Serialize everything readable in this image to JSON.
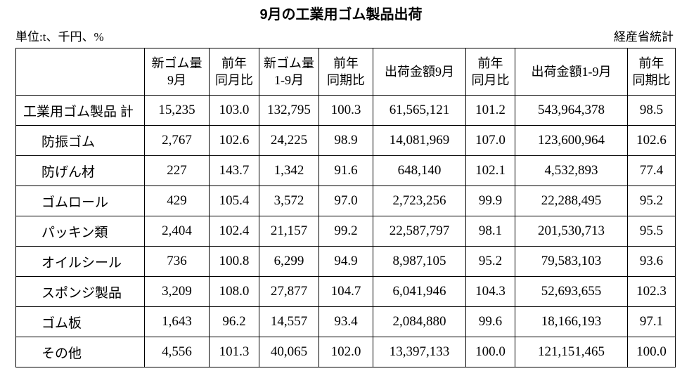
{
  "header": {
    "title": "9月の工業用ゴム製品出荷",
    "unit": "単位:t、千円、%",
    "source": "経産省統計"
  },
  "table": {
    "columns": [
      [
        "新ゴム量",
        "9月"
      ],
      [
        "前年",
        "同月比"
      ],
      [
        "新ゴム量",
        "1-9月"
      ],
      [
        "前年",
        "同期比"
      ],
      [
        "出荷金額9月"
      ],
      [
        "前年",
        "同月比"
      ],
      [
        "出荷金額1-9月"
      ],
      [
        "前年",
        "同期比"
      ]
    ],
    "rows": [
      [
        "工業用ゴム製品 計",
        "15,235",
        "103.0",
        "132,795",
        "100.3",
        "61,565,121",
        "101.2",
        "543,964,378",
        "98.5"
      ],
      [
        "防振ゴム",
        "2,767",
        "102.6",
        "24,225",
        "98.9",
        "14,081,969",
        "107.0",
        "123,600,964",
        "102.6"
      ],
      [
        "防げん材",
        "227",
        "143.7",
        "1,342",
        "91.6",
        "648,140",
        "102.1",
        "4,532,893",
        "77.4"
      ],
      [
        "ゴムロール",
        "429",
        "105.4",
        "3,572",
        "97.0",
        "2,723,256",
        "99.9",
        "22,288,495",
        "95.2"
      ],
      [
        "パッキン類",
        "2,404",
        "102.4",
        "21,157",
        "99.2",
        "22,587,797",
        "98.1",
        "201,530,713",
        "95.5"
      ],
      [
        "オイルシール",
        "736",
        "100.8",
        "6,299",
        "94.9",
        "8,987,105",
        "95.2",
        "79,583,103",
        "93.6"
      ],
      [
        "スポンジ製品",
        "3,209",
        "108.0",
        "27,877",
        "104.7",
        "6,041,946",
        "104.3",
        "52,693,655",
        "102.3"
      ],
      [
        "ゴム板",
        "1,643",
        "96.2",
        "14,557",
        "93.4",
        "2,084,880",
        "99.6",
        "18,166,193",
        "97.1"
      ],
      [
        "その他",
        "4,556",
        "101.3",
        "40,065",
        "102.0",
        "13,397,133",
        "100.0",
        "121,151,465",
        "100.0"
      ]
    ]
  }
}
